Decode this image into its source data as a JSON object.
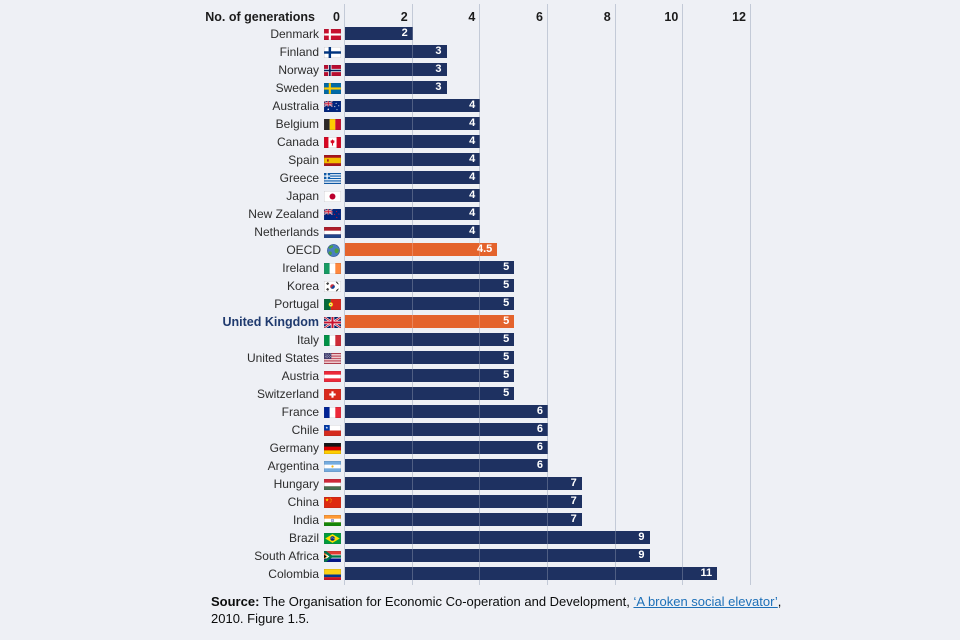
{
  "page": {
    "background_color": "#eef0f5"
  },
  "chart_data": {
    "type": "bar",
    "orientation": "horizontal",
    "axis_title": "No. of generations",
    "xlim": [
      0,
      12
    ],
    "xticks": [
      0,
      2,
      4,
      6,
      8,
      10,
      12
    ],
    "grid": true,
    "bar_color": "#1e3161",
    "highlight_color": "#e4632c",
    "gridline_color": "#b2bbcc",
    "categories": [
      {
        "label": "Denmark",
        "flag": "denmark-flag",
        "value": 2
      },
      {
        "label": "Finland",
        "flag": "finland-flag",
        "value": 3
      },
      {
        "label": "Norway",
        "flag": "norway-flag",
        "value": 3
      },
      {
        "label": "Sweden",
        "flag": "sweden-flag",
        "value": 3
      },
      {
        "label": "Australia",
        "flag": "australia-flag",
        "value": 4
      },
      {
        "label": "Belgium",
        "flag": "belgium-flag",
        "value": 4
      },
      {
        "label": "Canada",
        "flag": "canada-flag",
        "value": 4
      },
      {
        "label": "Spain",
        "flag": "spain-flag",
        "value": 4
      },
      {
        "label": "Greece",
        "flag": "greece-flag",
        "value": 4
      },
      {
        "label": "Japan",
        "flag": "japan-flag",
        "value": 4
      },
      {
        "label": "New Zealand",
        "flag": "new-zealand-flag",
        "value": 4
      },
      {
        "label": "Netherlands",
        "flag": "netherlands-flag",
        "value": 4
      },
      {
        "label": "OECD",
        "flag": "oecd-globe-icon",
        "value": 4.5,
        "highlight": true
      },
      {
        "label": "Ireland",
        "flag": "ireland-flag",
        "value": 5
      },
      {
        "label": "Korea",
        "flag": "korea-flag",
        "value": 5
      },
      {
        "label": "Portugal",
        "flag": "portugal-flag",
        "value": 5
      },
      {
        "label": "United Kingdom",
        "flag": "uk-flag",
        "value": 5,
        "highlight": true,
        "bold": true
      },
      {
        "label": "Italy",
        "flag": "italy-flag",
        "value": 5
      },
      {
        "label": "United States",
        "flag": "us-flag",
        "value": 5
      },
      {
        "label": "Austria",
        "flag": "austria-flag",
        "value": 5
      },
      {
        "label": "Switzerland",
        "flag": "switzerland-flag",
        "value": 5
      },
      {
        "label": "France",
        "flag": "france-flag",
        "value": 6
      },
      {
        "label": "Chile",
        "flag": "chile-flag",
        "value": 6
      },
      {
        "label": "Germany",
        "flag": "germany-flag",
        "value": 6
      },
      {
        "label": "Argentina",
        "flag": "argentina-flag",
        "value": 6
      },
      {
        "label": "Hungary",
        "flag": "hungary-flag",
        "value": 7
      },
      {
        "label": "China",
        "flag": "china-flag",
        "value": 7
      },
      {
        "label": "India",
        "flag": "india-flag",
        "value": 7
      },
      {
        "label": "Brazil",
        "flag": "brazil-flag",
        "value": 9
      },
      {
        "label": "South Africa",
        "flag": "south-africa-flag",
        "value": 9
      },
      {
        "label": "Colombia",
        "flag": "colombia-flag",
        "value": 11
      }
    ]
  },
  "source": {
    "prefix": "Source:",
    "text": " The Organisation for Economic Co-operation and Development, ",
    "link_text": "‘A broken social elevator’",
    "after_link": ",",
    "line2": "2010. Figure 1.5.",
    "link_color": "#1d70b8"
  }
}
